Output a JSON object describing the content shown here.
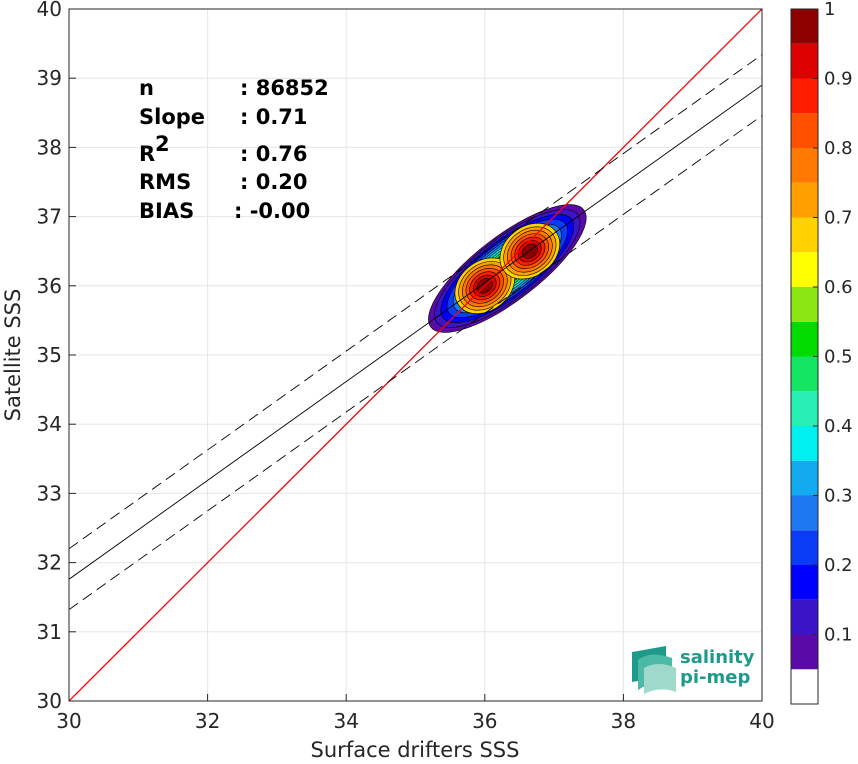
{
  "chart_data": {
    "type": "scatter",
    "xlabel": "Surface drifters SSS",
    "ylabel": "Satellite SSS",
    "xlim": [
      30,
      40
    ],
    "ylim": [
      30,
      40
    ],
    "xticks": [
      "30",
      "32",
      "34",
      "36",
      "38",
      "40"
    ],
    "yticks": [
      "30",
      "31",
      "32",
      "33",
      "34",
      "35",
      "36",
      "37",
      "38",
      "39",
      "40"
    ],
    "grid": true,
    "stats": [
      {
        "label": "n",
        "value": ": 86852"
      },
      {
        "label": "Slope",
        "value": ": 0.71"
      },
      {
        "label": "R",
        "sup": "2",
        "value": ": 0.76"
      },
      {
        "label": "RMS",
        "value": ": 0.20"
      },
      {
        "label": "BIAS",
        "value": ": -0.00"
      }
    ],
    "lines": [
      {
        "role": "identity",
        "color": "#ff0000",
        "style": "solid",
        "x": [
          30,
          40
        ],
        "y": [
          30,
          40
        ]
      },
      {
        "role": "regression",
        "color": "#000000",
        "style": "solid",
        "x": [
          30,
          40
        ],
        "y": [
          31.76,
          38.9
        ]
      },
      {
        "role": "regression-upper",
        "color": "#000000",
        "style": "dashed",
        "x": [
          30,
          40
        ],
        "y": [
          32.2,
          39.34
        ]
      },
      {
        "role": "regression-lower",
        "color": "#000000",
        "style": "dashed",
        "x": [
          30,
          40
        ],
        "y": [
          31.32,
          38.46
        ]
      }
    ],
    "density_peaks": [
      {
        "x": 36.0,
        "y": 36.0,
        "value": 1.0
      },
      {
        "x": 36.65,
        "y": 36.5,
        "value": 1.0
      }
    ],
    "colorbar": {
      "ticks": [
        "0.1",
        "0.2",
        "0.3",
        "0.4",
        "0.5",
        "0.6",
        "0.7",
        "0.8",
        "0.9",
        "1"
      ],
      "tick_values": [
        0.1,
        0.2,
        0.3,
        0.4,
        0.5,
        0.6,
        0.7,
        0.8,
        0.9,
        1.0
      ],
      "levels": [
        {
          "from": 0.0,
          "to": 0.05,
          "color": "#ffffff"
        },
        {
          "from": 0.05,
          "to": 0.1,
          "color": "#5a0aa6"
        },
        {
          "from": 0.1,
          "to": 0.15,
          "color": "#3c14c8"
        },
        {
          "from": 0.15,
          "to": 0.2,
          "color": "#0000ff"
        },
        {
          "from": 0.2,
          "to": 0.25,
          "color": "#0a3cf5"
        },
        {
          "from": 0.25,
          "to": 0.3,
          "color": "#1e78f0"
        },
        {
          "from": 0.3,
          "to": 0.35,
          "color": "#14aaf0"
        },
        {
          "from": 0.35,
          "to": 0.4,
          "color": "#00f0f0"
        },
        {
          "from": 0.4,
          "to": 0.45,
          "color": "#28f0b4"
        },
        {
          "from": 0.45,
          "to": 0.5,
          "color": "#14e664"
        },
        {
          "from": 0.5,
          "to": 0.55,
          "color": "#00dc00"
        },
        {
          "from": 0.55,
          "to": 0.6,
          "color": "#8ce614"
        },
        {
          "from": 0.6,
          "to": 0.65,
          "color": "#ffff00"
        },
        {
          "from": 0.65,
          "to": 0.7,
          "color": "#ffd200"
        },
        {
          "from": 0.7,
          "to": 0.75,
          "color": "#ffa000"
        },
        {
          "from": 0.75,
          "to": 0.8,
          "color": "#ff7800"
        },
        {
          "from": 0.8,
          "to": 0.85,
          "color": "#ff5000"
        },
        {
          "from": 0.85,
          "to": 0.9,
          "color": "#ff1e00"
        },
        {
          "from": 0.9,
          "to": 0.95,
          "color": "#dc0000"
        },
        {
          "from": 0.95,
          "to": 1.0,
          "color": "#8c0000"
        }
      ]
    }
  },
  "logo": {
    "line1": "salinity",
    "line2": "pi-mep",
    "color": "#1e9a8a"
  }
}
